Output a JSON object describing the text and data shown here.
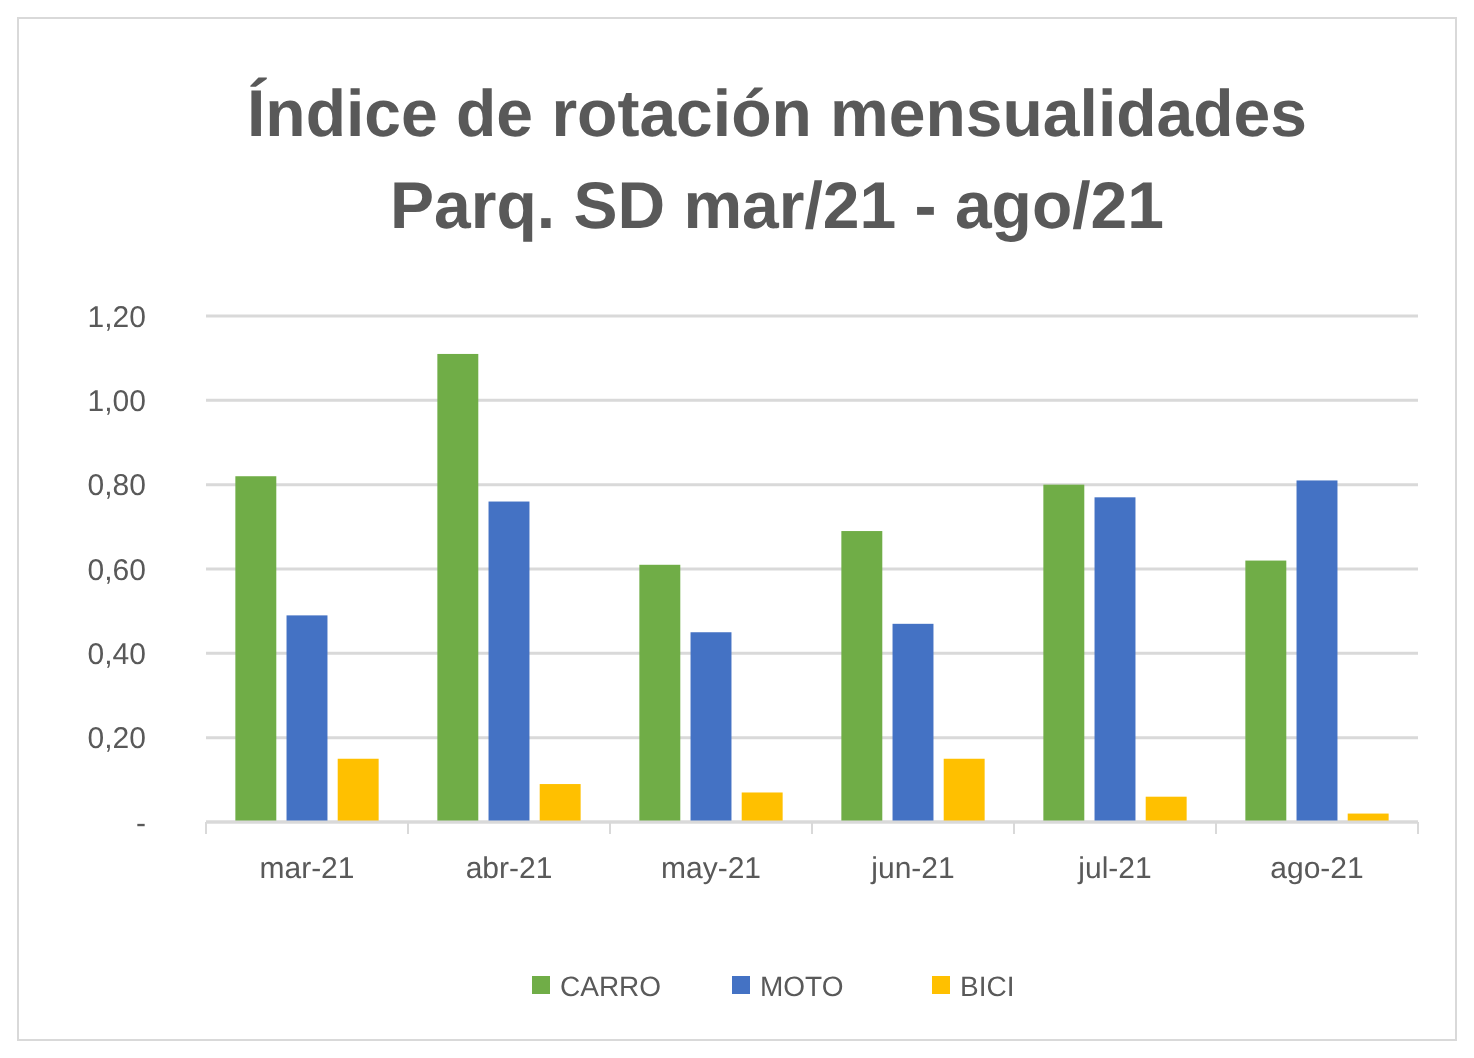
{
  "chart_data": {
    "type": "bar",
    "title": "Índice de rotación mensualidades\nParq. SD mar/21 - ago/21",
    "categories": [
      "mar-21",
      "abr-21",
      "may-21",
      "jun-21",
      "jul-21",
      "ago-21"
    ],
    "series": [
      {
        "name": "CARRO",
        "color": "#70ad47",
        "values": [
          0.82,
          1.11,
          0.61,
          0.69,
          0.8,
          0.62
        ]
      },
      {
        "name": "MOTO",
        "color": "#4472c4",
        "values": [
          0.49,
          0.76,
          0.45,
          0.47,
          0.77,
          0.81
        ]
      },
      {
        "name": "BICI",
        "color": "#ffc000",
        "values": [
          0.15,
          0.09,
          0.07,
          0.15,
          0.06,
          0.02
        ]
      }
    ],
    "ylim": [
      0,
      1.2
    ],
    "yticks": [
      {
        "value": 0,
        "label": "-"
      },
      {
        "value": 0.2,
        "label": "0,20"
      },
      {
        "value": 0.4,
        "label": "0,40"
      },
      {
        "value": 0.6,
        "label": "0,60"
      },
      {
        "value": 0.8,
        "label": "0,80"
      },
      {
        "value": 1.0,
        "label": "1,00"
      },
      {
        "value": 1.2,
        "label": "1,20"
      }
    ],
    "grid": "y",
    "legend": "bottom"
  }
}
